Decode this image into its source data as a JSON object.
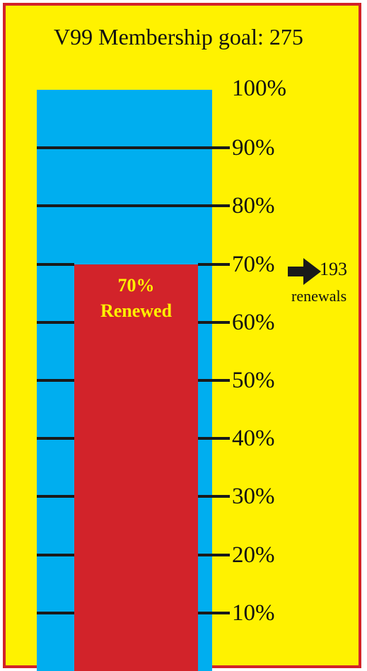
{
  "colors": {
    "frame_border": "#d2232a",
    "background": "#fff200",
    "tube": "#00aeef",
    "fill": "#d2232a",
    "fill_text": "#fff200",
    "tick": "#1a1a1a",
    "text": "#111111"
  },
  "chart_data": {
    "type": "bar",
    "title": "V99 Membership goal: 275",
    "goal": 275,
    "categories": [
      ""
    ],
    "values": [
      70
    ],
    "ylim": [
      0,
      100
    ],
    "unit": "%",
    "tick_labels": [
      "10%",
      "20%",
      "30%",
      "40%",
      "50%",
      "60%",
      "70%",
      "80%",
      "90%",
      "100%"
    ],
    "fill_label": {
      "value_text": "70%",
      "caption": "Renewed"
    },
    "annotation": {
      "icon": "arrow-right-icon",
      "count": "193",
      "unit": "renewals"
    }
  }
}
